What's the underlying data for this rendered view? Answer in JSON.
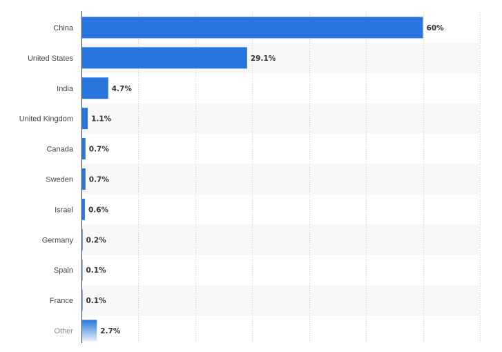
{
  "chart_data": {
    "type": "bar",
    "orientation": "horizontal",
    "categories": [
      "China",
      "United States",
      "India",
      "United Kingdom",
      "Canada",
      "Sweden",
      "Israel",
      "Germany",
      "Spain",
      "France",
      "Other"
    ],
    "values": [
      60,
      29.1,
      4.7,
      1.1,
      0.7,
      0.7,
      0.6,
      0.2,
      0.1,
      0.1,
      2.7
    ],
    "value_labels": [
      "60%",
      "29.1%",
      "4.7%",
      "1.1%",
      "0.7%",
      "0.7%",
      "0.6%",
      "0.2%",
      "0.1%",
      "0.1%",
      "2.7%"
    ],
    "xlim": [
      0,
      70
    ],
    "grid": true,
    "title": "",
    "xlabel": "",
    "ylabel": "",
    "colors": {
      "bar": "#2876dd",
      "bar_other_top": "#2876dd",
      "bar_other_bottom": "#e6effb",
      "stripe": "#f7f7f7",
      "axis": "#333333",
      "gridline": "#c8c8c8"
    }
  }
}
